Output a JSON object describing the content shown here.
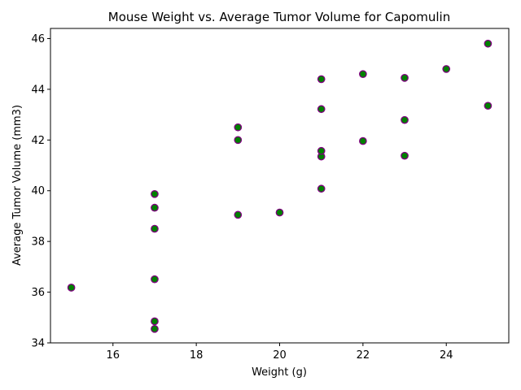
{
  "chart_data": {
    "type": "scatter",
    "title": "Mouse Weight vs. Average Tumor Volume for Capomulin",
    "xlabel": "Weight (g)",
    "ylabel": "Average Tumor Volume (mm3)",
    "xlim": [
      14.5,
      25.5
    ],
    "ylim": [
      34,
      46.4
    ],
    "xticks": [
      16,
      18,
      20,
      22,
      24
    ],
    "yticks": [
      34,
      36,
      38,
      40,
      42,
      44,
      46
    ],
    "grid": false,
    "colors": {
      "marker_fill": "#008000",
      "marker_edge": "#800080"
    },
    "points": [
      {
        "x": 15,
        "y": 36.18
      },
      {
        "x": 17,
        "y": 34.55
      },
      {
        "x": 17,
        "y": 34.85
      },
      {
        "x": 17,
        "y": 36.51
      },
      {
        "x": 17,
        "y": 38.5
      },
      {
        "x": 17,
        "y": 39.33
      },
      {
        "x": 17,
        "y": 39.87
      },
      {
        "x": 19,
        "y": 39.05
      },
      {
        "x": 19,
        "y": 42.0
      },
      {
        "x": 19,
        "y": 42.5
      },
      {
        "x": 20,
        "y": 39.14
      },
      {
        "x": 21,
        "y": 40.08
      },
      {
        "x": 21,
        "y": 41.35
      },
      {
        "x": 21,
        "y": 41.57
      },
      {
        "x": 21,
        "y": 43.22
      },
      {
        "x": 21,
        "y": 44.4
      },
      {
        "x": 22,
        "y": 41.96
      },
      {
        "x": 22,
        "y": 44.6
      },
      {
        "x": 23,
        "y": 41.38
      },
      {
        "x": 23,
        "y": 42.79
      },
      {
        "x": 23,
        "y": 44.45
      },
      {
        "x": 24,
        "y": 44.8
      },
      {
        "x": 25,
        "y": 43.35
      },
      {
        "x": 25,
        "y": 45.8
      }
    ]
  }
}
